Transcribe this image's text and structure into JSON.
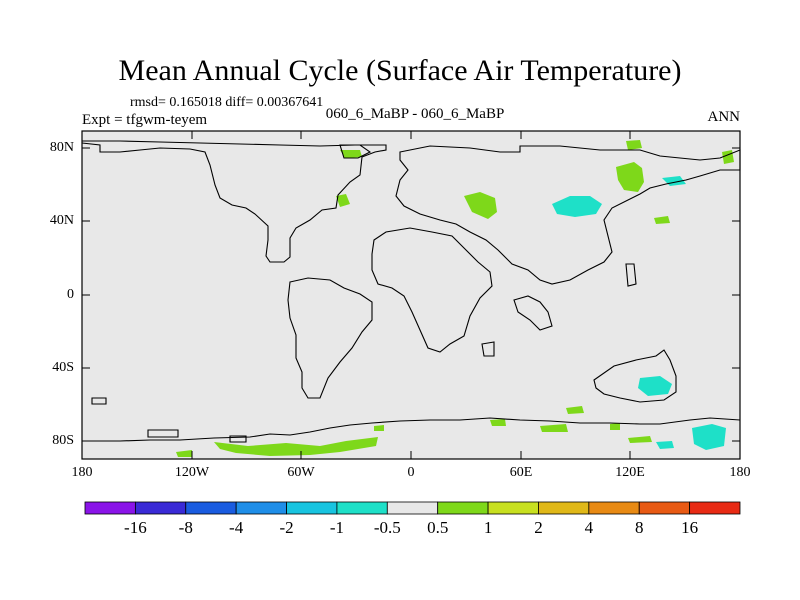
{
  "title": "Mean Annual Cycle (Surface Air Temperature)",
  "stats_line": "rmsd= 0.165018 diff= 0.00367641",
  "experiment": "Expt = tfgwm-teyem",
  "comparison": "060_6_MaBP - 060_6_MaBP",
  "season": "ANN",
  "map": {
    "background_color": "#e8e8e8",
    "lat_labels": [
      "80N",
      "40N",
      "0",
      "40S",
      "80S"
    ],
    "lon_labels": [
      "180",
      "120W",
      "60W",
      "0",
      "60E",
      "120E",
      "180"
    ]
  },
  "colorbar": {
    "labels": [
      "-16",
      "-8",
      "-4",
      "-2",
      "-1",
      "-0.5",
      "0.5",
      "1",
      "2",
      "4",
      "8",
      "16"
    ],
    "colors": [
      "#8a14e8",
      "#3a2ad6",
      "#1a5ce0",
      "#1f8ee8",
      "#18c4e0",
      "#1ee0c8",
      "#e8e8e8",
      "#7ed81a",
      "#c8e020",
      "#e0b818",
      "#e88a14",
      "#e85a14",
      "#e82a14"
    ]
  },
  "anomaly_regions": [
    {
      "name": "greenland-north",
      "color": "#7ed81a"
    },
    {
      "name": "siberia",
      "color": "#7ed81a"
    },
    {
      "name": "central-asia",
      "color": "#1ee0c8"
    },
    {
      "name": "antarctica",
      "color": "#7ed81a"
    },
    {
      "name": "australia-south",
      "color": "#1ee0c8"
    }
  ]
}
